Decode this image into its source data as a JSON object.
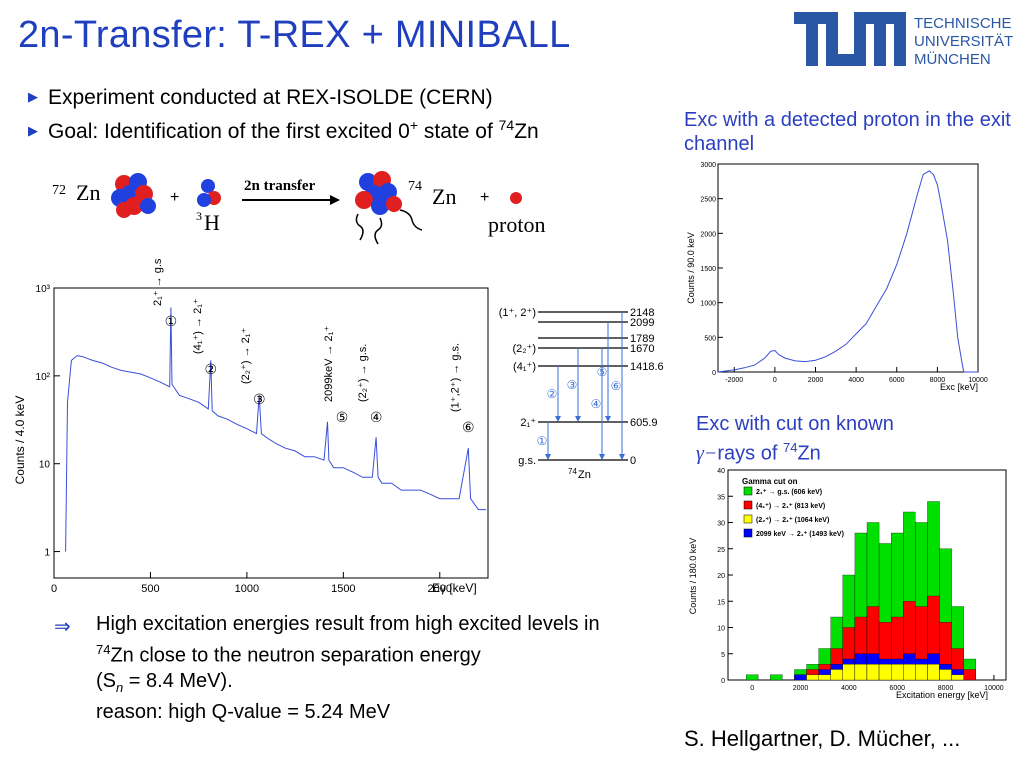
{
  "slide": {
    "title": "2n-Transfer: T-REX + MINIBALL",
    "logo_text": [
      "TECHNISCHE",
      "UNIVERSITÄT",
      "MÜNCHEN"
    ],
    "bullets": [
      "Experiment conducted at REX-ISOLDE (CERN)",
      "Goal: Identification of the first excited 0",
      " state of ",
      "74",
      "Zn"
    ],
    "reaction": {
      "target_mass": "72",
      "target_el": "Zn",
      "projectile_mass": "3",
      "projectile_el": "H",
      "arrow_label": "2n transfer",
      "product_mass": "74",
      "product_el": "Zn",
      "ejectile": "proton",
      "plus": "+"
    },
    "exc_caption": "Exc with a detected proton in the exit channel",
    "cut_caption_1": "Exc with cut on known",
    "cut_caption_2": "rays of ",
    "cut_caption_gamma": "γ−",
    "cut_caption_mass": "74",
    "cut_caption_el": "Zn",
    "conclusion": {
      "implies": "⇒",
      "line1": "High excitation energies result from high excited levels in",
      "line2_mass": "74",
      "line2": "Zn close to the neutron separation energy",
      "line3": "(S",
      "line3_sub": "n",
      "line3_rest": " = 8.4 MeV).",
      "line4": "reason: high Q-value = 5.24 MeV"
    },
    "credit": "S. Hellgartner, D. Mücher, ..."
  },
  "colors": {
    "title_blue": "#1f3fbf",
    "spectrum_blue": "#3a4fd8",
    "gamma_green": "#00e000",
    "gamma_red": "#ff0000",
    "gamma_yellow": "#ffff00",
    "gamma_blue": "#0000ff"
  },
  "chart_data": [
    {
      "type": "line",
      "name": "gamma-spectrum",
      "xlabel": "Eγ [keV]",
      "ylabel": "Counts / 4.0 keV",
      "yscale": "log",
      "xlim": [
        0,
        2250
      ],
      "ylim": [
        0.5,
        1000
      ],
      "xticks": [
        "0",
        "500",
        "1000",
        "1500",
        "2000"
      ],
      "yticks": [
        "1",
        "10",
        "10²",
        "10³"
      ],
      "x": [
        60,
        70,
        90,
        120,
        150,
        200,
        250,
        300,
        350,
        400,
        450,
        500,
        550,
        600,
        606,
        612,
        650,
        700,
        750,
        800,
        813,
        820,
        850,
        900,
        950,
        1000,
        1050,
        1064,
        1075,
        1100,
        1150,
        1200,
        1250,
        1300,
        1350,
        1400,
        1418,
        1425,
        1450,
        1500,
        1550,
        1600,
        1650,
        1670,
        1680,
        1700,
        1750,
        1800,
        1850,
        1900,
        1950,
        2000,
        2050,
        2100,
        2148,
        2160,
        2200,
        2240
      ],
      "y": [
        1,
        50,
        150,
        170,
        165,
        150,
        140,
        125,
        115,
        110,
        105,
        95,
        85,
        75,
        600,
        80,
        60,
        55,
        50,
        42,
        150,
        40,
        35,
        32,
        28,
        25,
        22,
        60,
        22,
        20,
        17,
        15,
        14,
        12,
        12,
        11,
        30,
        11,
        9,
        9,
        8,
        7,
        7,
        20,
        7,
        6,
        6,
        5,
        5,
        5,
        4.5,
        4,
        4,
        4,
        15,
        4,
        3,
        3
      ],
      "peak_labels": [
        {
          "id": "①",
          "text": "2₁⁺ → g.s",
          "energy": 606
        },
        {
          "id": "②",
          "text": "(4₁⁺) → 2₁⁺",
          "energy": 813
        },
        {
          "id": "③",
          "text": "(2₂⁺) → 2₁⁺",
          "energy": 1064
        },
        {
          "id": "⑤",
          "text": "2099keV → 2₁⁺",
          "energy": 1493
        },
        {
          "id": "④",
          "text": "(2₂⁺) → g.s.",
          "energy": 1670
        },
        {
          "id": "⑥",
          "text": "(1⁺,2⁺) → g.s.",
          "energy": 2148
        }
      ]
    },
    {
      "type": "line",
      "name": "exc-proton",
      "xlabel": "Exc [keV]",
      "ylabel": "Counts / 90.0 keV",
      "xlim": [
        -2800,
        10000
      ],
      "ylim": [
        0,
        3000
      ],
      "xticks": [
        "-2000",
        "0",
        "2000",
        "4000",
        "6000",
        "8000",
        "10000"
      ],
      "yticks": [
        "0",
        "500",
        "1000",
        "1500",
        "2000",
        "2500",
        "3000"
      ],
      "x": [
        -2800,
        -2000,
        -1500,
        -1000,
        -500,
        -200,
        0,
        200,
        500,
        1000,
        1500,
        2000,
        2500,
        3000,
        3500,
        4000,
        4500,
        5000,
        5500,
        6000,
        6500,
        7000,
        7300,
        7600,
        7800,
        8000,
        8200,
        8500,
        8800,
        9000,
        9200,
        9300,
        10000
      ],
      "y": [
        0,
        30,
        60,
        100,
        200,
        300,
        310,
        250,
        200,
        160,
        150,
        170,
        220,
        300,
        400,
        550,
        700,
        950,
        1200,
        1550,
        2000,
        2550,
        2850,
        2900,
        2850,
        2700,
        2400,
        1900,
        1100,
        500,
        150,
        0,
        0
      ]
    },
    {
      "type": "bar",
      "name": "exc-gamma-cut",
      "xlabel": "Excitation energy [keV]",
      "ylabel": "Counts / 180.0 keV",
      "xlim": [
        -1000,
        10500
      ],
      "ylim": [
        0,
        40
      ],
      "xticks": [
        "0",
        "2000",
        "4000",
        "6000",
        "8000",
        "10000"
      ],
      "yticks": [
        "0",
        "5",
        "10",
        "15",
        "20",
        "25",
        "30",
        "35",
        "40"
      ],
      "legend_title": "Gamma cut on",
      "series": [
        {
          "name": "2₁⁺ → g.s. (606 keV)",
          "color": "#00e000"
        },
        {
          "name": "(4₁⁺) → 2₁⁺ (813 keV)",
          "color": "#ff0000"
        },
        {
          "name": "(2₂⁺) → 2₁⁺ (1064 keV)",
          "color": "#ffff00"
        },
        {
          "name": "2099 keV → 2₁⁺ (1493 keV)",
          "color": "#0000ff"
        }
      ],
      "x": [
        0,
        1000,
        2000,
        2500,
        3000,
        3500,
        4000,
        4500,
        5000,
        5500,
        6000,
        6500,
        7000,
        7500,
        8000,
        8500,
        9000
      ],
      "green": [
        1,
        1,
        2,
        3,
        6,
        12,
        20,
        28,
        30,
        26,
        28,
        32,
        30,
        34,
        25,
        14,
        4
      ],
      "red": [
        0,
        0,
        1,
        2,
        3,
        6,
        10,
        12,
        14,
        11,
        12,
        15,
        14,
        16,
        11,
        6,
        2
      ],
      "yellow": [
        0,
        0,
        0,
        1,
        1,
        2,
        3,
        3,
        3,
        3,
        3,
        3,
        3,
        3,
        2,
        1,
        0
      ],
      "blue": [
        0,
        0,
        1,
        1,
        2,
        3,
        4,
        5,
        5,
        4,
        4,
        5,
        4,
        5,
        3,
        2,
        0
      ]
    }
  ],
  "level_scheme": {
    "levels": [
      {
        "energy": "2148",
        "spin": "(1⁺, 2⁺)"
      },
      {
        "energy": "2099",
        "spin": ""
      },
      {
        "energy": "1789",
        "spin": ""
      },
      {
        "energy": "1670",
        "spin": "(2₂⁺)"
      },
      {
        "energy": "1418.6",
        "spin": "(4₁⁺)"
      },
      {
        "energy": "605.9",
        "spin": "2₁⁺"
      },
      {
        "energy": "0",
        "spin": "g.s."
      }
    ],
    "nucleus_mass": "74",
    "nucleus_el": "Zn",
    "transitions": [
      "①",
      "②",
      "③",
      "④",
      "⑤",
      "⑥"
    ]
  }
}
